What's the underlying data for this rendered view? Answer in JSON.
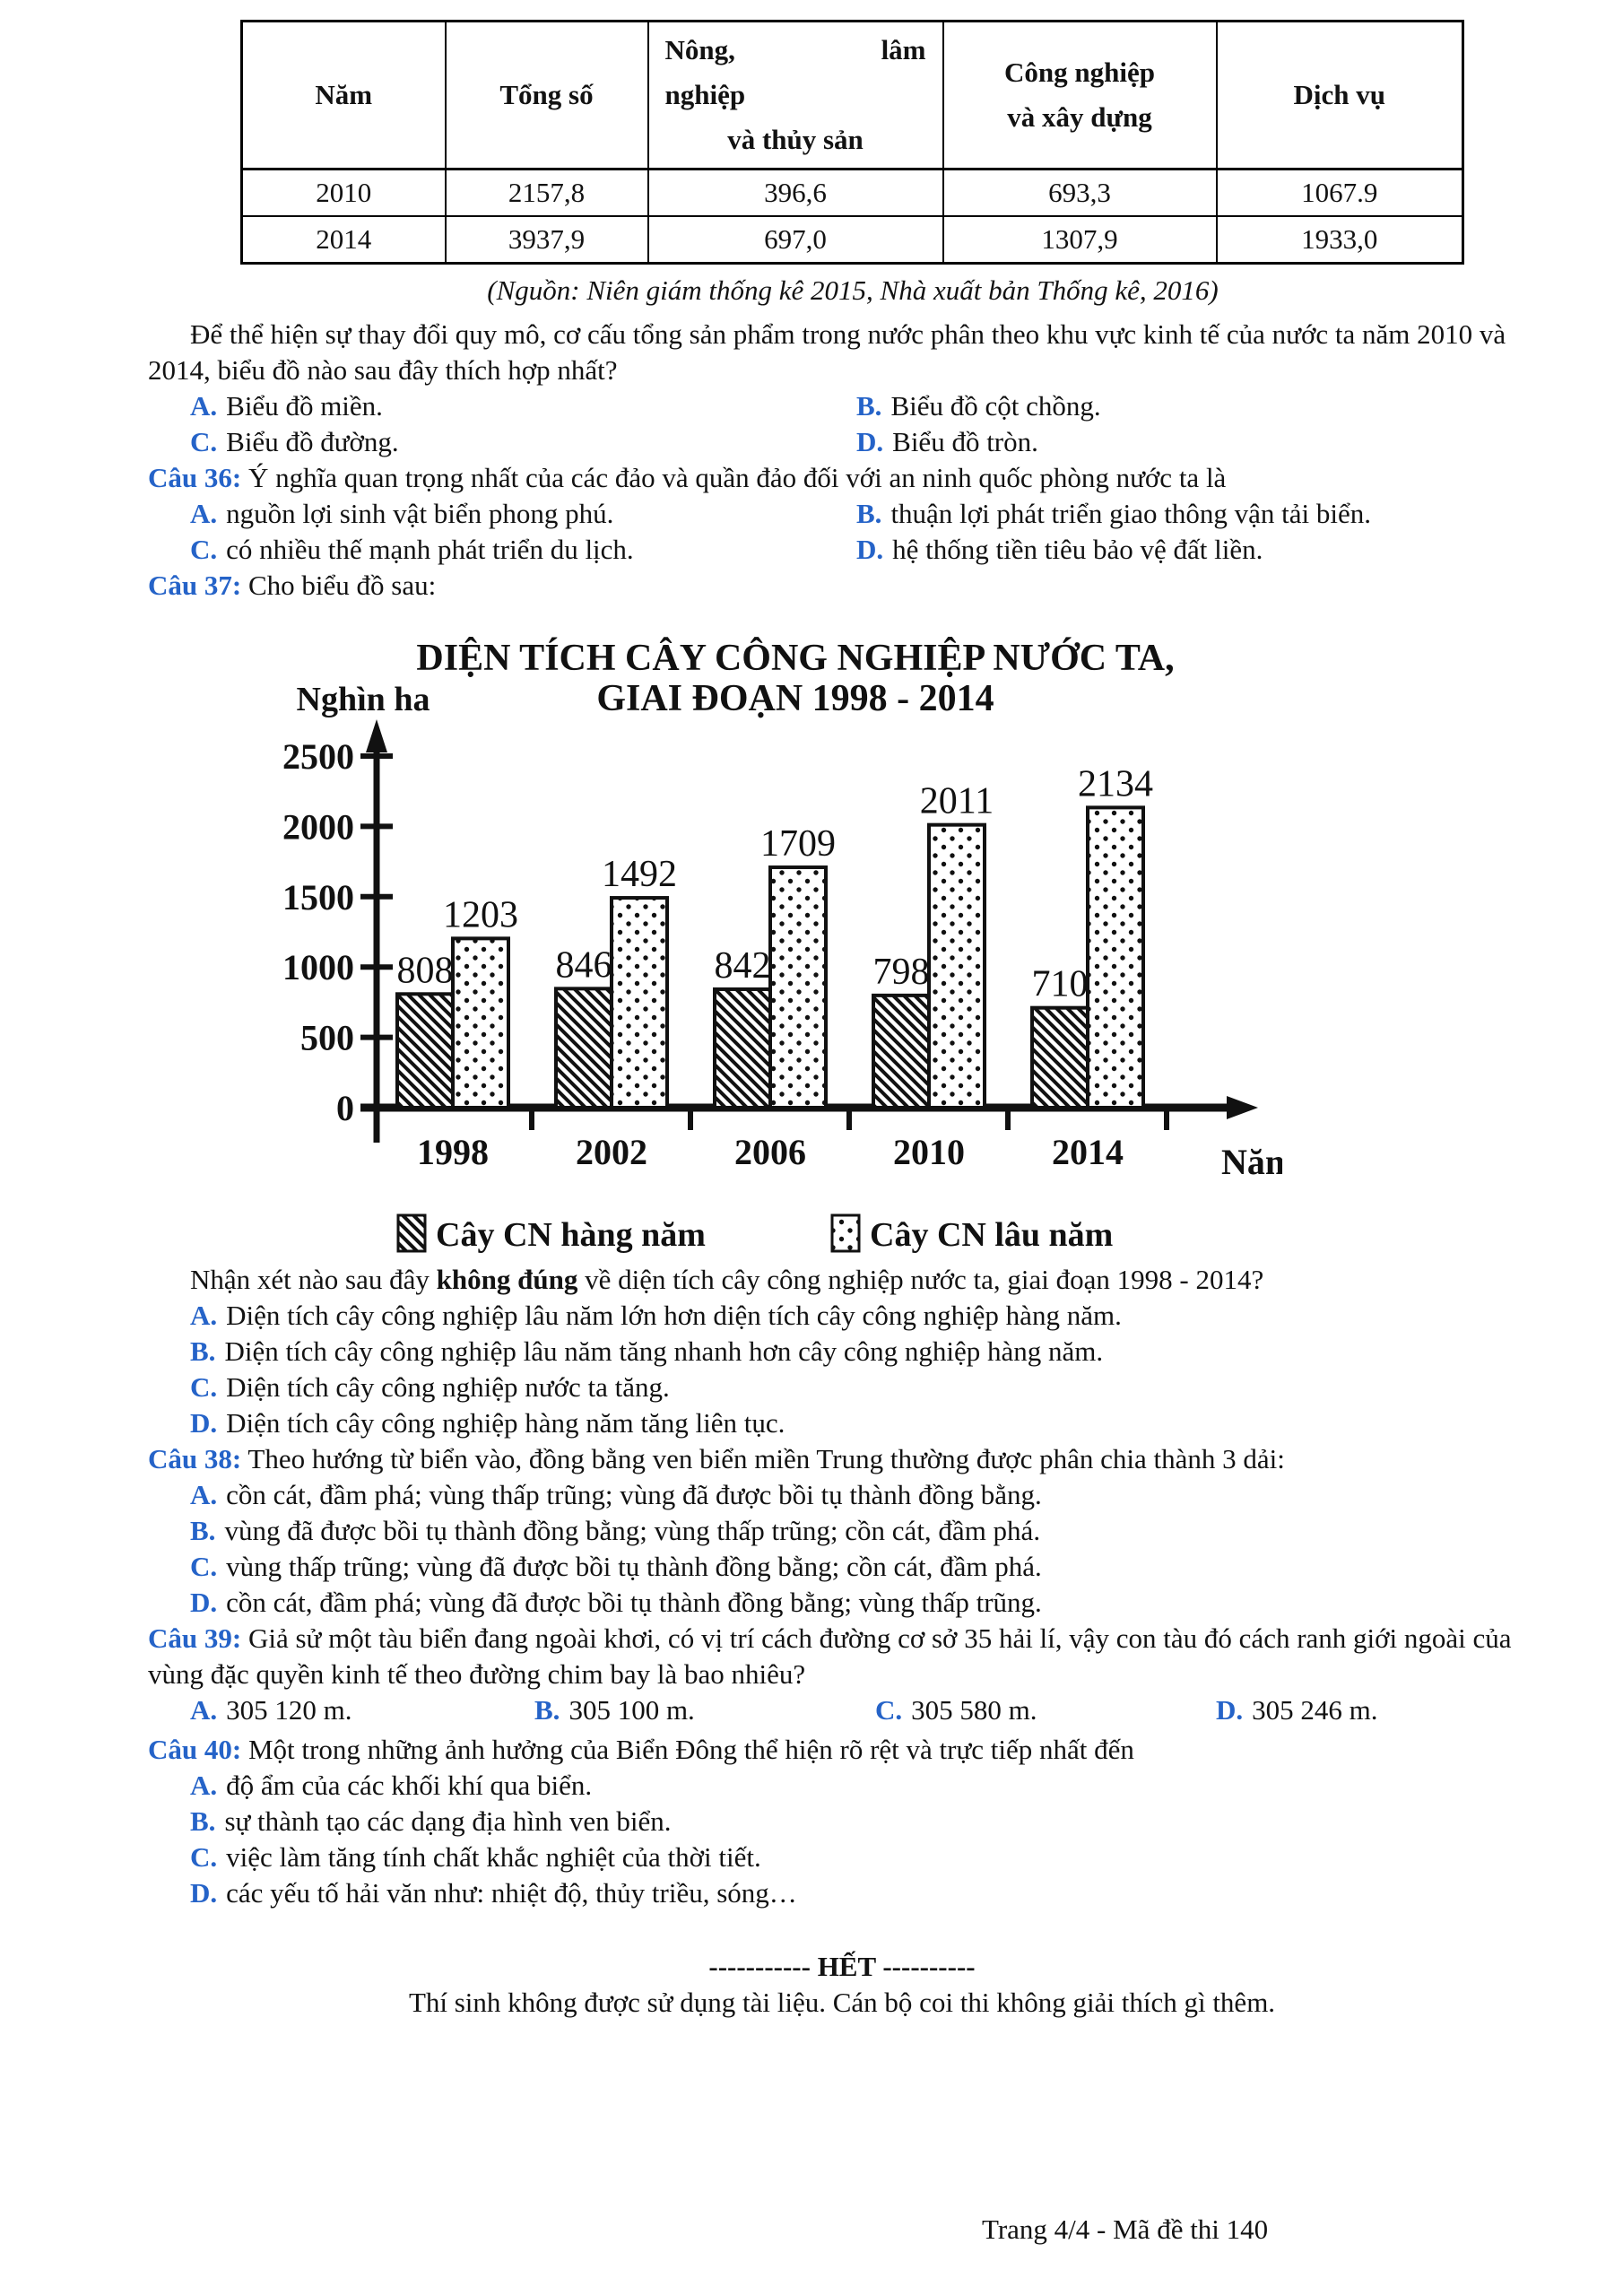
{
  "colors": {
    "accent_blue": "#2563C8"
  },
  "table": {
    "col1_header": "Năm",
    "col2_header": "Tổng số",
    "col3_lines": [
      "Nông,",
      "lâm",
      "nghiệp",
      "và thủy sản"
    ],
    "col4_lines": [
      "Công nghiệp",
      "và xây dựng"
    ],
    "col5_header": "Dịch vụ",
    "rows": [
      [
        "2010",
        "2157,8",
        "396,6",
        "693,3",
        "1067.9"
      ],
      [
        "2014",
        "3937,9",
        "697,0",
        "1307,9",
        "1933,0"
      ]
    ],
    "source": "(Nguồn: Niên giám thống kê 2015, Nhà xuất bản Thống kê, 2016)"
  },
  "q35": {
    "text": "Để thể hiện sự thay đổi quy mô, cơ cấu tổng sản phẩm trong nước phân theo khu vực kinh tế của nước ta năm 2010 và 2014, biểu đồ nào sau đây thích hợp nhất?",
    "options": [
      {
        "letter": "A.",
        "text": "Biểu đồ miền."
      },
      {
        "letter": "B.",
        "text": "Biểu đồ cột chồng."
      },
      {
        "letter": "C.",
        "text": "Biểu đồ đường."
      },
      {
        "letter": "D.",
        "text": "Biểu đồ tròn."
      }
    ]
  },
  "q36": {
    "number": "Câu 36:",
    "text": "Ý nghĩa quan trọng nhất của các đảo và quần đảo đối với an ninh quốc phòng nước ta là",
    "options": [
      {
        "letter": "A.",
        "text": "nguồn lợi sinh vật biển phong phú."
      },
      {
        "letter": "B.",
        "text": "thuận lợi phát triển giao thông vận tải biển."
      },
      {
        "letter": "C.",
        "text": "có nhiều thế mạnh phát triển du lịch."
      },
      {
        "letter": "D.",
        "text": "hệ thống tiền tiêu bảo vệ đất liền."
      }
    ]
  },
  "q37": {
    "number": "Câu 37:",
    "text": "Cho biểu đồ sau:"
  },
  "chart_data": {
    "type": "bar",
    "title_line1": "DIỆN TÍCH CÂY CÔNG NGHIỆP NƯỚC TA,",
    "title_line2": "GIAI ĐOẠN 1998 - 2014",
    "ylabel": "Nghìn ha",
    "xlabel": "Năm",
    "categories": [
      "1998",
      "2002",
      "2006",
      "2010",
      "2014"
    ],
    "series": [
      {
        "name": "Cây CN hàng năm",
        "pattern": "hatch",
        "values": [
          808,
          846,
          842,
          798,
          710
        ]
      },
      {
        "name": "Cây CN lâu năm",
        "pattern": "dots",
        "values": [
          1203,
          1492,
          1709,
          2011,
          2134
        ]
      }
    ],
    "ylim": [
      0,
      2500
    ],
    "ytick_step": 500,
    "grid": false,
    "legend_position": "bottom"
  },
  "q37_followup": {
    "pre": "Nhận xét nào sau đây ",
    "bold": "không đúng",
    "post": " về diện tích cây công nghiệp nước ta, giai đoạn 1998 - 2014?",
    "options": [
      {
        "letter": "A.",
        "text": "Diện tích cây công nghiệp lâu năm lớn hơn diện tích cây công nghiệp hàng năm."
      },
      {
        "letter": "B.",
        "text": "Diện tích cây công nghiệp lâu năm tăng nhanh hơn cây công nghiệp hàng năm."
      },
      {
        "letter": "C.",
        "text": "Diện tích cây công nghiệp nước ta tăng."
      },
      {
        "letter": "D.",
        "text": "Diện tích cây công nghiệp hàng năm tăng liên tục."
      }
    ]
  },
  "q38": {
    "number": "Câu 38:",
    "text": "Theo hướng từ biển vào, đồng bằng ven biển miền Trung thường được phân chia thành 3 dải:",
    "options": [
      {
        "letter": "A.",
        "text": "cồn cát, đầm phá; vùng thấp trũng; vùng đã được bồi tụ thành đồng bằng."
      },
      {
        "letter": "B.",
        "text": "vùng đã được bồi tụ thành đồng bằng; vùng thấp trũng; cồn cát, đầm phá."
      },
      {
        "letter": "C.",
        "text": "vùng thấp trũng; vùng đã được bồi tụ thành đồng bằng; cồn cát, đầm phá."
      },
      {
        "letter": "D.",
        "text": "cồn cát, đầm phá; vùng đã được bồi tụ thành đồng bằng; vùng thấp trũng."
      }
    ]
  },
  "q39": {
    "number": "Câu 39:",
    "text": "Giả sử một tàu biển đang ngoài khơi, có vị trí cách đường cơ sở 35 hải lí, vậy con tàu đó cách ranh giới ngoài của vùng đặc quyền kinh tế theo đường chim bay là bao nhiêu?",
    "options": [
      {
        "letter": "A.",
        "text": "305 120 m."
      },
      {
        "letter": "B.",
        "text": "305 100 m."
      },
      {
        "letter": "C.",
        "text": "305 580 m."
      },
      {
        "letter": "D.",
        "text": "305 246 m."
      }
    ]
  },
  "q40": {
    "number": "Câu 40:",
    "text": "Một trong những ảnh hưởng của Biển Đông thể hiện rõ rệt và trực tiếp nhất đến",
    "options": [
      {
        "letter": "A.",
        "text": "độ ẩm của các khối khí qua biển."
      },
      {
        "letter": "B.",
        "text": "sự thành tạo các dạng địa hình ven biển."
      },
      {
        "letter": "C.",
        "text": "việc làm tăng tính chất khắc nghiệt của thời tiết."
      },
      {
        "letter": "D.",
        "text": "các yếu tố hải văn như: nhiệt độ, thủy triều, sóng…"
      }
    ]
  },
  "closing": {
    "het": "----------- HẾT ----------",
    "note": "Thí sinh không được sử dụng tài liệu. Cán bộ coi thi không giải thích gì thêm."
  },
  "footer": {
    "page_label": "Trang 4/4 - Mã đề thi 140"
  }
}
